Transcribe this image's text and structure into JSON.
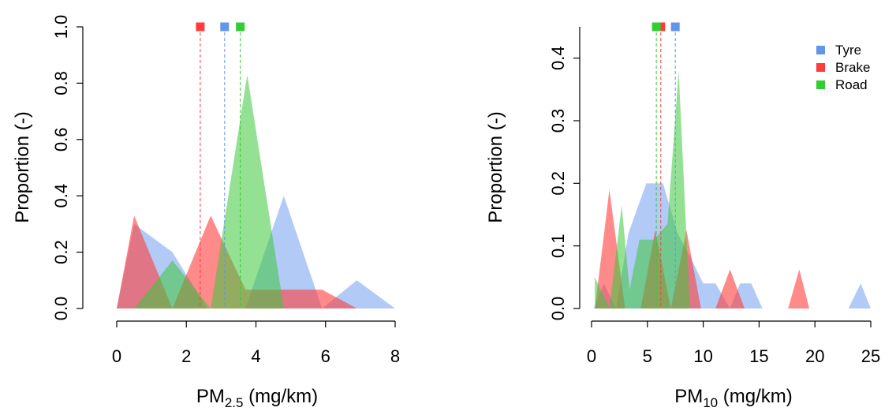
{
  "colors": {
    "tyre_fill": "rgba(100,149,237,0.5)",
    "brake_fill": "rgba(255,60,60,0.6)",
    "road_fill": "rgba(60,200,60,0.55)",
    "tyre": "#6495ED",
    "brake": "#FF3B3B",
    "road": "#33CC33"
  },
  "chart_data": [
    {
      "type": "area",
      "title": "",
      "xlabel_main": "PM",
      "xlabel_sub": "2.5",
      "xlabel_unit": " (mg/km)",
      "ylabel": "Proportion (-)",
      "xlim": [
        0,
        8
      ],
      "ylim": [
        0,
        1.0
      ],
      "xticks": [
        "0",
        "2",
        "4",
        "6",
        "8"
      ],
      "yticks": [
        "0.0",
        "0.2",
        "0.4",
        "0.6",
        "0.8",
        "1.0"
      ],
      "series": [
        {
          "key": "tyre",
          "name": "Tyre",
          "mean": 3.1,
          "x": [
            0.0,
            0.5,
            1.6,
            2.6,
            3.7,
            4.8,
            5.9,
            6.9,
            8.0
          ],
          "y": [
            0.0,
            0.3,
            0.2,
            0.0,
            0.0,
            0.4,
            0.0,
            0.1,
            0.0
          ]
        },
        {
          "key": "brake",
          "name": "Brake",
          "mean": 2.4,
          "x": [
            0.0,
            0.5,
            1.6,
            2.7,
            3.7,
            4.8,
            5.9,
            6.9
          ],
          "y": [
            0.0,
            0.33,
            0.0,
            0.33,
            0.067,
            0.067,
            0.067,
            0.0
          ],
          "y_base": [
            0.0,
            0.0,
            0.0,
            0.0,
            0.0,
            0.0,
            0.0,
            0.0
          ]
        },
        {
          "key": "road",
          "name": "Road",
          "mean": 3.55,
          "x": [
            0.5,
            1.6,
            2.7,
            3.75,
            4.8
          ],
          "y": [
            0.0,
            0.17,
            0.0,
            0.83,
            0.0
          ]
        }
      ]
    },
    {
      "type": "area",
      "title": "",
      "xlabel_main": "PM",
      "xlabel_sub": "10",
      "xlabel_unit": " (mg/km)",
      "ylabel": "Proportion (-)",
      "xlim": [
        0,
        25
      ],
      "ylim": [
        0,
        0.45
      ],
      "xticks": [
        "0",
        "5",
        "10",
        "15",
        "20",
        "25"
      ],
      "yticks": [
        "0.0",
        "0.1",
        "0.2",
        "0.3",
        "0.4"
      ],
      "legend": [
        "Tyre",
        "Brake",
        "Road"
      ],
      "series": [
        {
          "key": "tyre",
          "name": "Tyre",
          "mean": 7.5,
          "x": [
            0.2,
            1.1,
            2.2,
            3.3,
            4.9,
            6.4,
            7.7,
            8.9,
            10.0,
            11.1,
            12.4,
            13.3,
            14.3,
            15.3,
            23.0,
            24.1,
            25.0
          ],
          "y": [
            0.0,
            0.04,
            0.0,
            0.12,
            0.2,
            0.2,
            0.12,
            0.08,
            0.04,
            0.04,
            0.0,
            0.04,
            0.04,
            0.0,
            0.0,
            0.04,
            0.0
          ]
        },
        {
          "key": "brake",
          "name": "Brake",
          "mean": 6.2,
          "x": [
            0.3,
            1.6,
            3.0,
            4.4,
            5.7,
            7.1,
            8.5,
            9.8,
            11.1,
            12.4,
            13.7,
            17.6,
            18.6,
            19.5
          ],
          "y": [
            0.0,
            0.19,
            0.0,
            0.0,
            0.125,
            0.0,
            0.125,
            0.0,
            0.0,
            0.0625,
            0.0,
            0.0,
            0.0625,
            0.0
          ]
        },
        {
          "key": "road",
          "name": "Road",
          "mean": 5.8,
          "x": [
            0.3,
            1.6,
            2.7,
            3.4,
            4.3,
            5.6,
            6.8,
            7.8,
            8.8,
            10.0
          ],
          "y": [
            0.05,
            0.0,
            0.165,
            0.03,
            0.11,
            0.11,
            0.135,
            0.38,
            0.0,
            0.0
          ]
        }
      ]
    }
  ]
}
